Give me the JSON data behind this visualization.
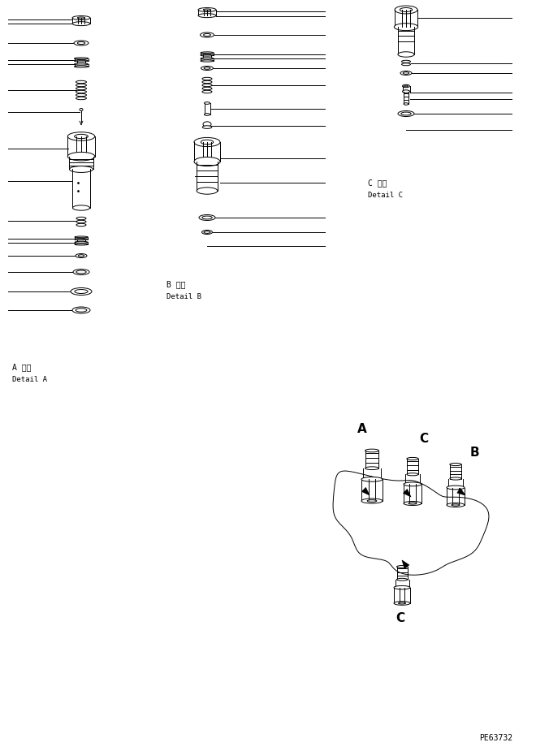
{
  "bg_color": "#ffffff",
  "line_color": "#000000",
  "text_color": "#000000",
  "figure_width": 6.76,
  "figure_height": 9.25,
  "dpi": 100,
  "part_code": "PE63732",
  "detail_a_label": "A 詳細",
  "detail_a_sub": "Detail A",
  "detail_b_label": "B 詳細",
  "detail_b_sub": "Detail B",
  "detail_c_label": "C 詳細",
  "detail_c_sub": "Detail C"
}
